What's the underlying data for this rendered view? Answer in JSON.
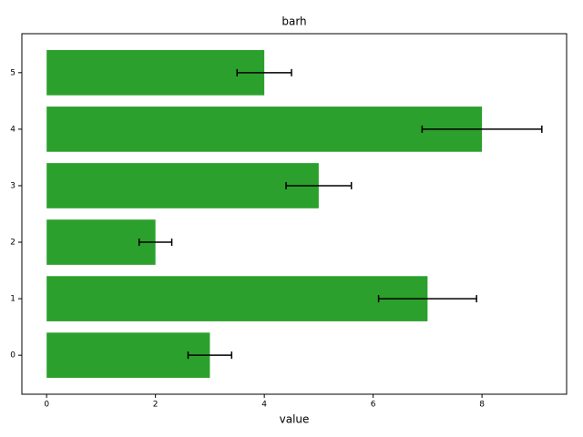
{
  "chart_data": {
    "type": "barh",
    "title": "barh",
    "xlabel": "value",
    "y": [
      0,
      1,
      2,
      3,
      4,
      5
    ],
    "values": [
      3,
      7,
      2,
      5,
      8,
      4
    ],
    "errors": [
      0.4,
      0.9,
      0.3,
      0.6,
      1.1,
      0.5
    ],
    "color": "#2ca02c",
    "error_color": "#000000",
    "xlim": [
      -0.455,
      9.555
    ],
    "xticks": [
      0,
      2,
      4,
      6,
      8
    ],
    "ylim": [
      -0.69,
      5.69
    ],
    "yticks": [
      0,
      1,
      2,
      3,
      4,
      5
    ],
    "bar_height": 0.8,
    "grid": false
  }
}
